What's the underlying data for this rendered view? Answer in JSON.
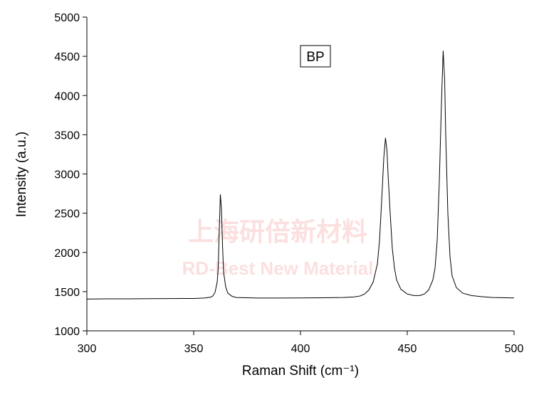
{
  "chart_data": {
    "type": "line",
    "xlabel": "Raman Shift (cm⁻¹)",
    "ylabel": "Intensity (a.u.)",
    "annotation": "BP",
    "watermark": [
      "上海研倍新材料",
      "RD-Best New Material"
    ],
    "x": [
      300,
      310,
      320,
      330,
      340,
      350,
      355,
      358,
      359,
      360,
      361,
      361.5,
      362,
      362.5,
      363,
      363.5,
      364,
      365,
      366,
      368,
      370,
      380,
      390,
      400,
      410,
      420,
      425,
      428,
      430,
      432,
      434,
      436,
      437,
      438,
      439,
      439.8,
      440.5,
      441,
      442,
      443,
      444,
      445,
      447,
      450,
      453,
      456,
      458,
      460,
      462,
      463,
      464,
      465,
      466,
      466.8,
      467.5,
      468,
      469,
      470,
      471,
      473,
      476,
      480,
      485,
      490,
      500
    ],
    "series": [
      {
        "color": "#000000",
        "values": [
          1405,
          1408,
          1408,
          1410,
          1412,
          1413,
          1418,
          1430,
          1445,
          1490,
          1620,
          1800,
          2300,
          2740,
          2560,
          2100,
          1750,
          1560,
          1480,
          1440,
          1425,
          1418,
          1418,
          1420,
          1422,
          1425,
          1432,
          1445,
          1470,
          1520,
          1620,
          1850,
          2150,
          2650,
          3200,
          3460,
          3300,
          3000,
          2500,
          2050,
          1800,
          1650,
          1530,
          1470,
          1450,
          1450,
          1470,
          1520,
          1650,
          1800,
          2150,
          2900,
          3900,
          4570,
          4200,
          3500,
          2500,
          1950,
          1700,
          1550,
          1480,
          1450,
          1435,
          1425,
          1420
        ]
      }
    ],
    "xlim": [
      300,
      500
    ],
    "xticks": [
      300,
      350,
      400,
      450,
      500
    ],
    "ylim": [
      1000,
      5000
    ],
    "yticks": [
      1000,
      1500,
      2000,
      2500,
      3000,
      3500,
      4000,
      4500,
      5000
    ]
  }
}
